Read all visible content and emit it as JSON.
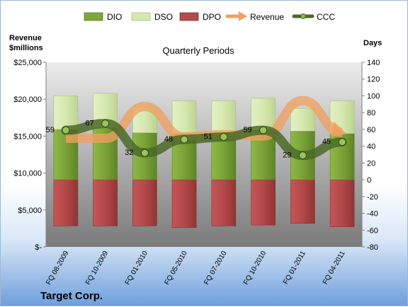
{
  "chart_data": {
    "type": "bar",
    "title": "Quarterly Periods",
    "company": "Target Corp.",
    "left_axis_label": [
      "Revenue",
      "$millions"
    ],
    "right_axis_label": "Days",
    "categories": [
      "FQ 08-2009",
      "FQ 10-2009",
      "FQ 01-2010",
      "FQ 05-2010",
      "FQ 07-2010",
      "FQ 10-2010",
      "FQ 01-2011",
      "FQ 04-2011"
    ],
    "left_ticks": [
      "$-",
      "$5,000",
      "$10,000",
      "$15,000",
      "$20,000",
      "$25,000"
    ],
    "left_ylim": [
      0,
      25000
    ],
    "right_ticks": [
      "-80",
      "-60",
      "-40",
      "-20",
      "0",
      "20",
      "40",
      "60",
      "80",
      "100",
      "120",
      "140"
    ],
    "right_ylim": [
      -80,
      140
    ],
    "grid": false,
    "legend_position": "top",
    "legend": [
      {
        "name": "DIO",
        "type": "bar",
        "color": "#7fa63a"
      },
      {
        "name": "DSO",
        "type": "bar",
        "color": "#d6e8b0"
      },
      {
        "name": "DPO",
        "type": "bar",
        "color": "#b54a4a"
      },
      {
        "name": "Revenue",
        "type": "arrow",
        "color": "#f0a060"
      },
      {
        "name": "CCC",
        "type": "line",
        "color": "#4a6a28"
      }
    ],
    "series": [
      {
        "name": "DIO",
        "axis": "right",
        "values": [
          60,
          62,
          56,
          55,
          54,
          59,
          58,
          55
        ]
      },
      {
        "name": "DSO",
        "axis": "right",
        "values": [
          40,
          41,
          31,
          39,
          40,
          38,
          27,
          39
        ]
      },
      {
        "name": "DPO",
        "axis": "right",
        "values": [
          -55,
          -55,
          -55,
          -57,
          -55,
          -54,
          -52,
          -56
        ]
      },
      {
        "name": "Revenue",
        "axis": "left",
        "values": [
          14700,
          14700,
          19000,
          14900,
          15200,
          15000,
          19800,
          15500
        ]
      },
      {
        "name": "CCC",
        "axis": "right",
        "values": [
          59,
          67,
          32,
          48,
          51,
          59,
          29,
          45
        ]
      }
    ]
  }
}
